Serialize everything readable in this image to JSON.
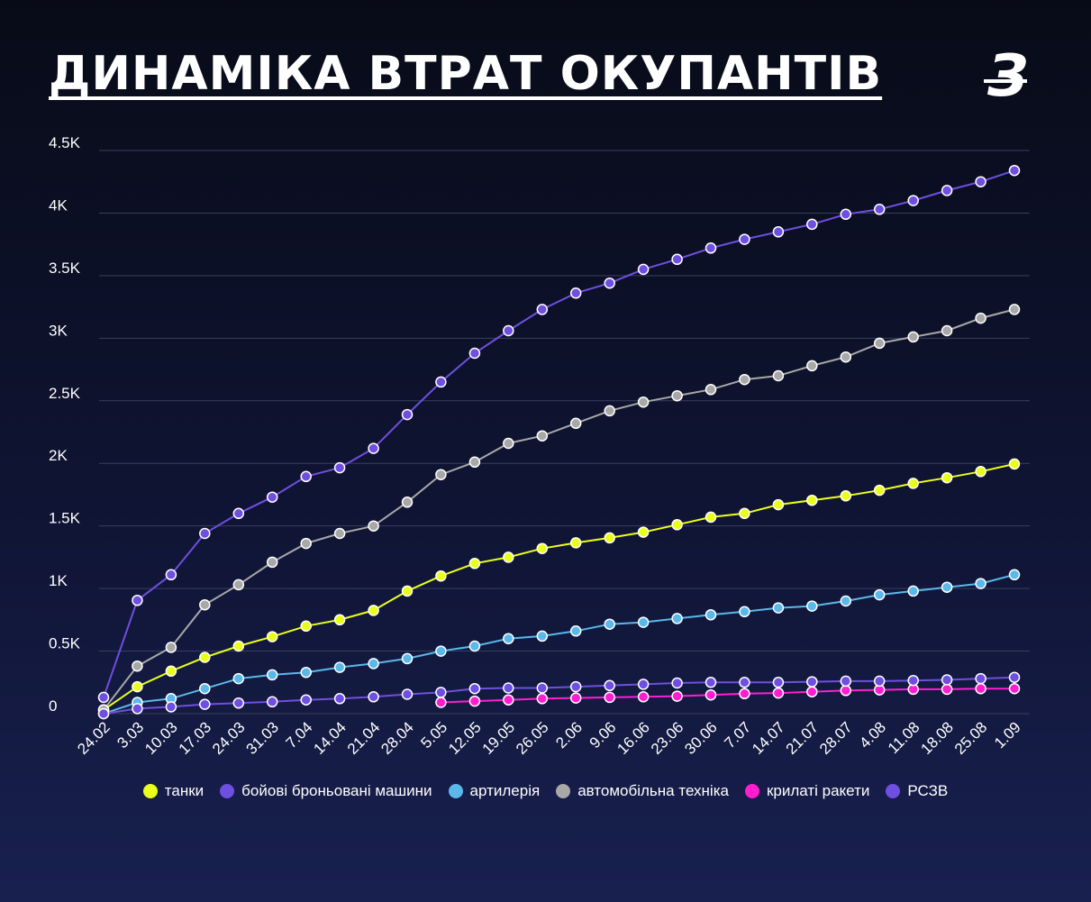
{
  "title": "ДИНАМІКА ВТРАТ ОКУПАНТІВ",
  "logo": "З",
  "colors": {
    "grid": "#3a3f5c",
    "tick_text": "#ffffff",
    "marker_stroke": "#ffffff"
  },
  "chart_data": {
    "type": "line",
    "title": "ДИНАМІКА ВТРАТ ОКУПАНТІВ",
    "xlabel": "",
    "ylabel": "",
    "ylim": [
      0,
      4500
    ],
    "yticks": [
      0,
      500,
      1000,
      1500,
      2000,
      2500,
      3000,
      3500,
      4000,
      4500
    ],
    "ytick_labels": [
      "0",
      "0.5K",
      "1K",
      "1.5K",
      "2K",
      "2.5K",
      "3K",
      "3.5K",
      "4K",
      "4.5K"
    ],
    "grid": true,
    "legend_position": "bottom",
    "categories": [
      "24.02",
      "3.03",
      "10.03",
      "17.03",
      "24.03",
      "31.03",
      "7.04",
      "14.04",
      "21.04",
      "28.04",
      "5.05",
      "12.05",
      "19.05",
      "26.05",
      "2.06",
      "9.06",
      "16.06",
      "23.06",
      "30.06",
      "7.07",
      "14.07",
      "21.07",
      "28.07",
      "4.08",
      "11.08",
      "18.08",
      "25.08",
      "1.09"
    ],
    "series": [
      {
        "name": "танки",
        "color": "#eaff1a",
        "values": [
          30,
          215,
          340,
          450,
          540,
          615,
          700,
          750,
          825,
          980,
          1100,
          1200,
          1250,
          1320,
          1365,
          1405,
          1450,
          1510,
          1570,
          1600,
          1670,
          1705,
          1740,
          1785,
          1840,
          1885,
          1935,
          1995
        ]
      },
      {
        "name": "бойові броньовані машини",
        "color": "#6f4fe0",
        "values": [
          130,
          905,
          1110,
          1440,
          1600,
          1730,
          1895,
          1965,
          2120,
          2390,
          2650,
          2880,
          3060,
          3230,
          3360,
          3440,
          3550,
          3630,
          3720,
          3790,
          3850,
          3910,
          3990,
          4030,
          4100,
          4180,
          4250,
          4340
        ]
      },
      {
        "name": "артилерія",
        "color": "#5ab8ea",
        "values": [
          0,
          90,
          120,
          200,
          280,
          310,
          330,
          370,
          400,
          440,
          500,
          540,
          600,
          620,
          660,
          715,
          730,
          760,
          790,
          815,
          845,
          860,
          900,
          950,
          980,
          1010,
          1040,
          1110
        ]
      },
      {
        "name": "автомобільна техніка",
        "color": "#a8a8a8",
        "values": [
          30,
          380,
          530,
          870,
          1030,
          1210,
          1360,
          1440,
          1500,
          1690,
          1910,
          2010,
          2160,
          2220,
          2320,
          2420,
          2490,
          2540,
          2590,
          2670,
          2700,
          2780,
          2850,
          2960,
          3010,
          3060,
          3160,
          3230
        ]
      },
      {
        "name": "крилаті ракети",
        "color": "#ff1ecf",
        "values": [
          null,
          null,
          null,
          null,
          null,
          null,
          null,
          null,
          null,
          null,
          90,
          100,
          110,
          120,
          125,
          130,
          135,
          140,
          150,
          160,
          165,
          175,
          185,
          190,
          195,
          195,
          200,
          200
        ]
      },
      {
        "name": "РСЗВ",
        "color": "#6f4fe0",
        "values": [
          0,
          40,
          55,
          75,
          85,
          95,
          110,
          120,
          135,
          155,
          170,
          200,
          205,
          205,
          215,
          225,
          235,
          245,
          250,
          250,
          250,
          255,
          260,
          260,
          265,
          270,
          280,
          290
        ]
      }
    ]
  }
}
